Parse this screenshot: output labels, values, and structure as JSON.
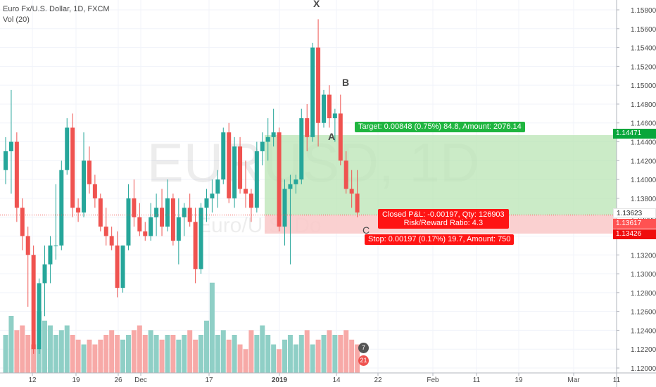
{
  "legend": {
    "title": "Euro Fx/U.S. Dollar, 1D, FXCM",
    "volume": "Vol (20)"
  },
  "watermark": {
    "symbol": "EURUSD, 1D",
    "description": "Euro/U.S. Do"
  },
  "colors": {
    "up": "#26a69a",
    "down": "#ef5350",
    "up_volume": "#8fcfc6",
    "down_volume": "#f7a9a7",
    "target_zone": "#b9e4b4",
    "stop_zone": "#f9c8c8"
  },
  "price_axis": [
    "1.15800",
    "1.15600",
    "1.15400",
    "1.15200",
    "1.15000",
    "1.14800",
    "1.14600",
    "1.14400",
    "1.14200",
    "1.14000",
    "1.13800",
    "1.13600",
    "1.13400",
    "1.13200",
    "1.13000",
    "1.12800",
    "1.12600",
    "1.12400",
    "1.12200",
    "1.12000"
  ],
  "time_axis": [
    "12",
    "19",
    "26",
    "Dec",
    "17",
    "2019",
    "14",
    "22",
    "Feb",
    "11",
    "19",
    "Mar",
    "11"
  ],
  "price_labels": {
    "last": "1.13623",
    "target": "1.14471",
    "close": "1.13617",
    "stop": "1.13426"
  },
  "position": {
    "target_text": "Target: 0.00848 (0.75%) 84.8, Amount: 2076.14",
    "stop_text": "Stop: 0.00197 (0.17%) 19.7, Amount: 750",
    "closed_pnl": "Closed P&L: -0.00197, Qty: 126903",
    "risk_reward": "Risk/Reward Ratio: 4.3"
  },
  "waves": {
    "x": "X",
    "a": "A",
    "b": "B",
    "c": "C"
  },
  "badges": {
    "top": "7",
    "bottom": "21"
  },
  "chart_data": {
    "type": "candlestick",
    "symbol": "EURUSD",
    "interval": "1D",
    "ylim": [
      1.1195,
      1.1585
    ],
    "candles": [
      {
        "o": 1.141,
        "h": 1.1445,
        "l": 1.1395,
        "c": 1.143
      },
      {
        "o": 1.143,
        "h": 1.1495,
        "l": 1.1385,
        "c": 1.144
      },
      {
        "o": 1.144,
        "h": 1.145,
        "l": 1.1355,
        "c": 1.137
      },
      {
        "o": 1.137,
        "h": 1.138,
        "l": 1.1325,
        "c": 1.134
      },
      {
        "o": 1.134,
        "h": 1.135,
        "l": 1.1265,
        "c": 1.132
      },
      {
        "o": 1.132,
        "h": 1.133,
        "l": 1.1215,
        "c": 1.122
      },
      {
        "o": 1.122,
        "h": 1.1295,
        "l": 1.1215,
        "c": 1.129
      },
      {
        "o": 1.129,
        "h": 1.133,
        "l": 1.1255,
        "c": 1.131
      },
      {
        "o": 1.131,
        "h": 1.134,
        "l": 1.129,
        "c": 1.133
      },
      {
        "o": 1.133,
        "h": 1.1395,
        "l": 1.1315,
        "c": 1.133
      },
      {
        "o": 1.133,
        "h": 1.142,
        "l": 1.1325,
        "c": 1.141
      },
      {
        "o": 1.141,
        "h": 1.1465,
        "l": 1.1405,
        "c": 1.1455
      },
      {
        "o": 1.1455,
        "h": 1.147,
        "l": 1.136,
        "c": 1.137
      },
      {
        "o": 1.137,
        "h": 1.138,
        "l": 1.1355,
        "c": 1.1365
      },
      {
        "o": 1.1365,
        "h": 1.145,
        "l": 1.136,
        "c": 1.142
      },
      {
        "o": 1.142,
        "h": 1.1435,
        "l": 1.1385,
        "c": 1.1395
      },
      {
        "o": 1.1395,
        "h": 1.1405,
        "l": 1.137,
        "c": 1.138
      },
      {
        "o": 1.138,
        "h": 1.1385,
        "l": 1.1345,
        "c": 1.135
      },
      {
        "o": 1.135,
        "h": 1.137,
        "l": 1.133,
        "c": 1.134
      },
      {
        "o": 1.134,
        "h": 1.135,
        "l": 1.1325,
        "c": 1.133
      },
      {
        "o": 1.133,
        "h": 1.1345,
        "l": 1.1275,
        "c": 1.1285
      },
      {
        "o": 1.1285,
        "h": 1.133,
        "l": 1.128,
        "c": 1.133
      },
      {
        "o": 1.133,
        "h": 1.1395,
        "l": 1.1325,
        "c": 1.138
      },
      {
        "o": 1.138,
        "h": 1.14,
        "l": 1.135,
        "c": 1.136
      },
      {
        "o": 1.136,
        "h": 1.1375,
        "l": 1.134,
        "c": 1.1345
      },
      {
        "o": 1.1345,
        "h": 1.1355,
        "l": 1.1335,
        "c": 1.134
      },
      {
        "o": 1.134,
        "h": 1.1375,
        "l": 1.1335,
        "c": 1.136
      },
      {
        "o": 1.136,
        "h": 1.1385,
        "l": 1.134,
        "c": 1.137
      },
      {
        "o": 1.137,
        "h": 1.139,
        "l": 1.134,
        "c": 1.135
      },
      {
        "o": 1.135,
        "h": 1.14,
        "l": 1.1345,
        "c": 1.138
      },
      {
        "o": 1.138,
        "h": 1.1385,
        "l": 1.133,
        "c": 1.1335
      },
      {
        "o": 1.1335,
        "h": 1.138,
        "l": 1.131,
        "c": 1.136
      },
      {
        "o": 1.136,
        "h": 1.1375,
        "l": 1.134,
        "c": 1.137
      },
      {
        "o": 1.137,
        "h": 1.1385,
        "l": 1.135,
        "c": 1.1355
      },
      {
        "o": 1.1355,
        "h": 1.137,
        "l": 1.129,
        "c": 1.1305
      },
      {
        "o": 1.1305,
        "h": 1.1375,
        "l": 1.13,
        "c": 1.137
      },
      {
        "o": 1.137,
        "h": 1.139,
        "l": 1.1355,
        "c": 1.138
      },
      {
        "o": 1.138,
        "h": 1.14,
        "l": 1.1365,
        "c": 1.1385
      },
      {
        "o": 1.1385,
        "h": 1.141,
        "l": 1.137,
        "c": 1.14
      },
      {
        "o": 1.14,
        "h": 1.1455,
        "l": 1.1395,
        "c": 1.145
      },
      {
        "o": 1.145,
        "h": 1.146,
        "l": 1.1375,
        "c": 1.138
      },
      {
        "o": 1.138,
        "h": 1.1445,
        "l": 1.137,
        "c": 1.1435
      },
      {
        "o": 1.1435,
        "h": 1.1445,
        "l": 1.1385,
        "c": 1.139
      },
      {
        "o": 1.139,
        "h": 1.142,
        "l": 1.137,
        "c": 1.1385
      },
      {
        "o": 1.1385,
        "h": 1.139,
        "l": 1.1355,
        "c": 1.137
      },
      {
        "o": 1.137,
        "h": 1.144,
        "l": 1.1365,
        "c": 1.143
      },
      {
        "o": 1.143,
        "h": 1.145,
        "l": 1.1415,
        "c": 1.144
      },
      {
        "o": 1.144,
        "h": 1.1465,
        "l": 1.142,
        "c": 1.1445
      },
      {
        "o": 1.1445,
        "h": 1.1475,
        "l": 1.1435,
        "c": 1.145
      },
      {
        "o": 1.145,
        "h": 1.1455,
        "l": 1.1345,
        "c": 1.135
      },
      {
        "o": 1.135,
        "h": 1.14,
        "l": 1.133,
        "c": 1.139
      },
      {
        "o": 1.139,
        "h": 1.1405,
        "l": 1.131,
        "c": 1.1395
      },
      {
        "o": 1.1395,
        "h": 1.1405,
        "l": 1.1385,
        "c": 1.14
      },
      {
        "o": 1.14,
        "h": 1.1475,
        "l": 1.1395,
        "c": 1.1465
      },
      {
        "o": 1.1465,
        "h": 1.148,
        "l": 1.143,
        "c": 1.1445
      },
      {
        "o": 1.1445,
        "h": 1.1545,
        "l": 1.144,
        "c": 1.154
      },
      {
        "o": 1.154,
        "h": 1.157,
        "l": 1.1435,
        "c": 1.146
      },
      {
        "o": 1.146,
        "h": 1.1495,
        "l": 1.1455,
        "c": 1.149
      },
      {
        "o": 1.149,
        "h": 1.15,
        "l": 1.1455,
        "c": 1.1465
      },
      {
        "o": 1.1465,
        "h": 1.1475,
        "l": 1.144,
        "c": 1.147
      },
      {
        "o": 1.147,
        "h": 1.149,
        "l": 1.1415,
        "c": 1.142
      },
      {
        "o": 1.142,
        "h": 1.143,
        "l": 1.1385,
        "c": 1.139
      },
      {
        "o": 1.139,
        "h": 1.141,
        "l": 1.137,
        "c": 1.1385
      },
      {
        "o": 1.1385,
        "h": 1.141,
        "l": 1.136,
        "c": 1.1365
      }
    ],
    "volume": {
      "values": [
        40,
        60,
        45,
        50,
        40,
        30,
        65,
        55,
        50,
        40,
        45,
        50,
        40,
        35,
        30,
        35,
        30,
        35,
        40,
        45,
        40,
        35,
        40,
        45,
        50,
        40,
        45,
        40,
        35,
        40,
        40,
        35,
        40,
        45,
        35,
        40,
        55,
        95,
        40,
        45,
        35,
        40,
        30,
        25,
        45,
        40,
        50,
        40,
        30,
        25,
        35,
        40,
        30,
        40,
        45,
        30,
        35,
        40,
        45,
        40,
        40,
        45,
        35,
        30
      ],
      "ylim": [
        0,
        100
      ]
    },
    "position_tool": {
      "entry": 1.13623,
      "target": 1.14471,
      "stop": 1.13426,
      "close": 1.13617
    }
  }
}
